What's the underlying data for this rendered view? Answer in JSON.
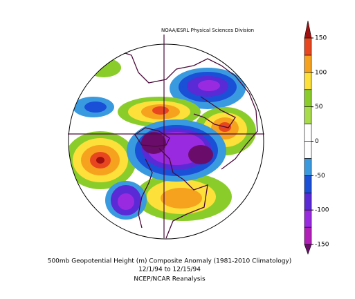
{
  "header": {
    "credit": "NOAA/ESRL Physical Sciences Division"
  },
  "caption": {
    "lines": [
      "500mb Geopotential Height (m) Composite Anomaly (1981-2010 Climatology)",
      "12/1/94  to 12/15/94",
      "NCEP/NCAR Reanalysis"
    ]
  },
  "colorbar": {
    "levels": [
      -150,
      -125,
      -100,
      -75,
      -50,
      -25,
      0,
      25,
      50,
      75,
      100,
      125,
      150
    ],
    "colors": [
      "#b21fb8",
      "#9a2ae0",
      "#5a2ad6",
      "#1a4fd8",
      "#3a9ae0",
      "#ffffff",
      "#ffffff",
      "#a8dc4a",
      "#8acd2a",
      "#fde03a",
      "#f7a21e",
      "#e8461f"
    ],
    "under_color": "#6a0d6a",
    "over_color": "#a01010",
    "ticks": [
      150,
      100,
      50,
      0,
      -50,
      -100,
      -150
    ]
  }
}
